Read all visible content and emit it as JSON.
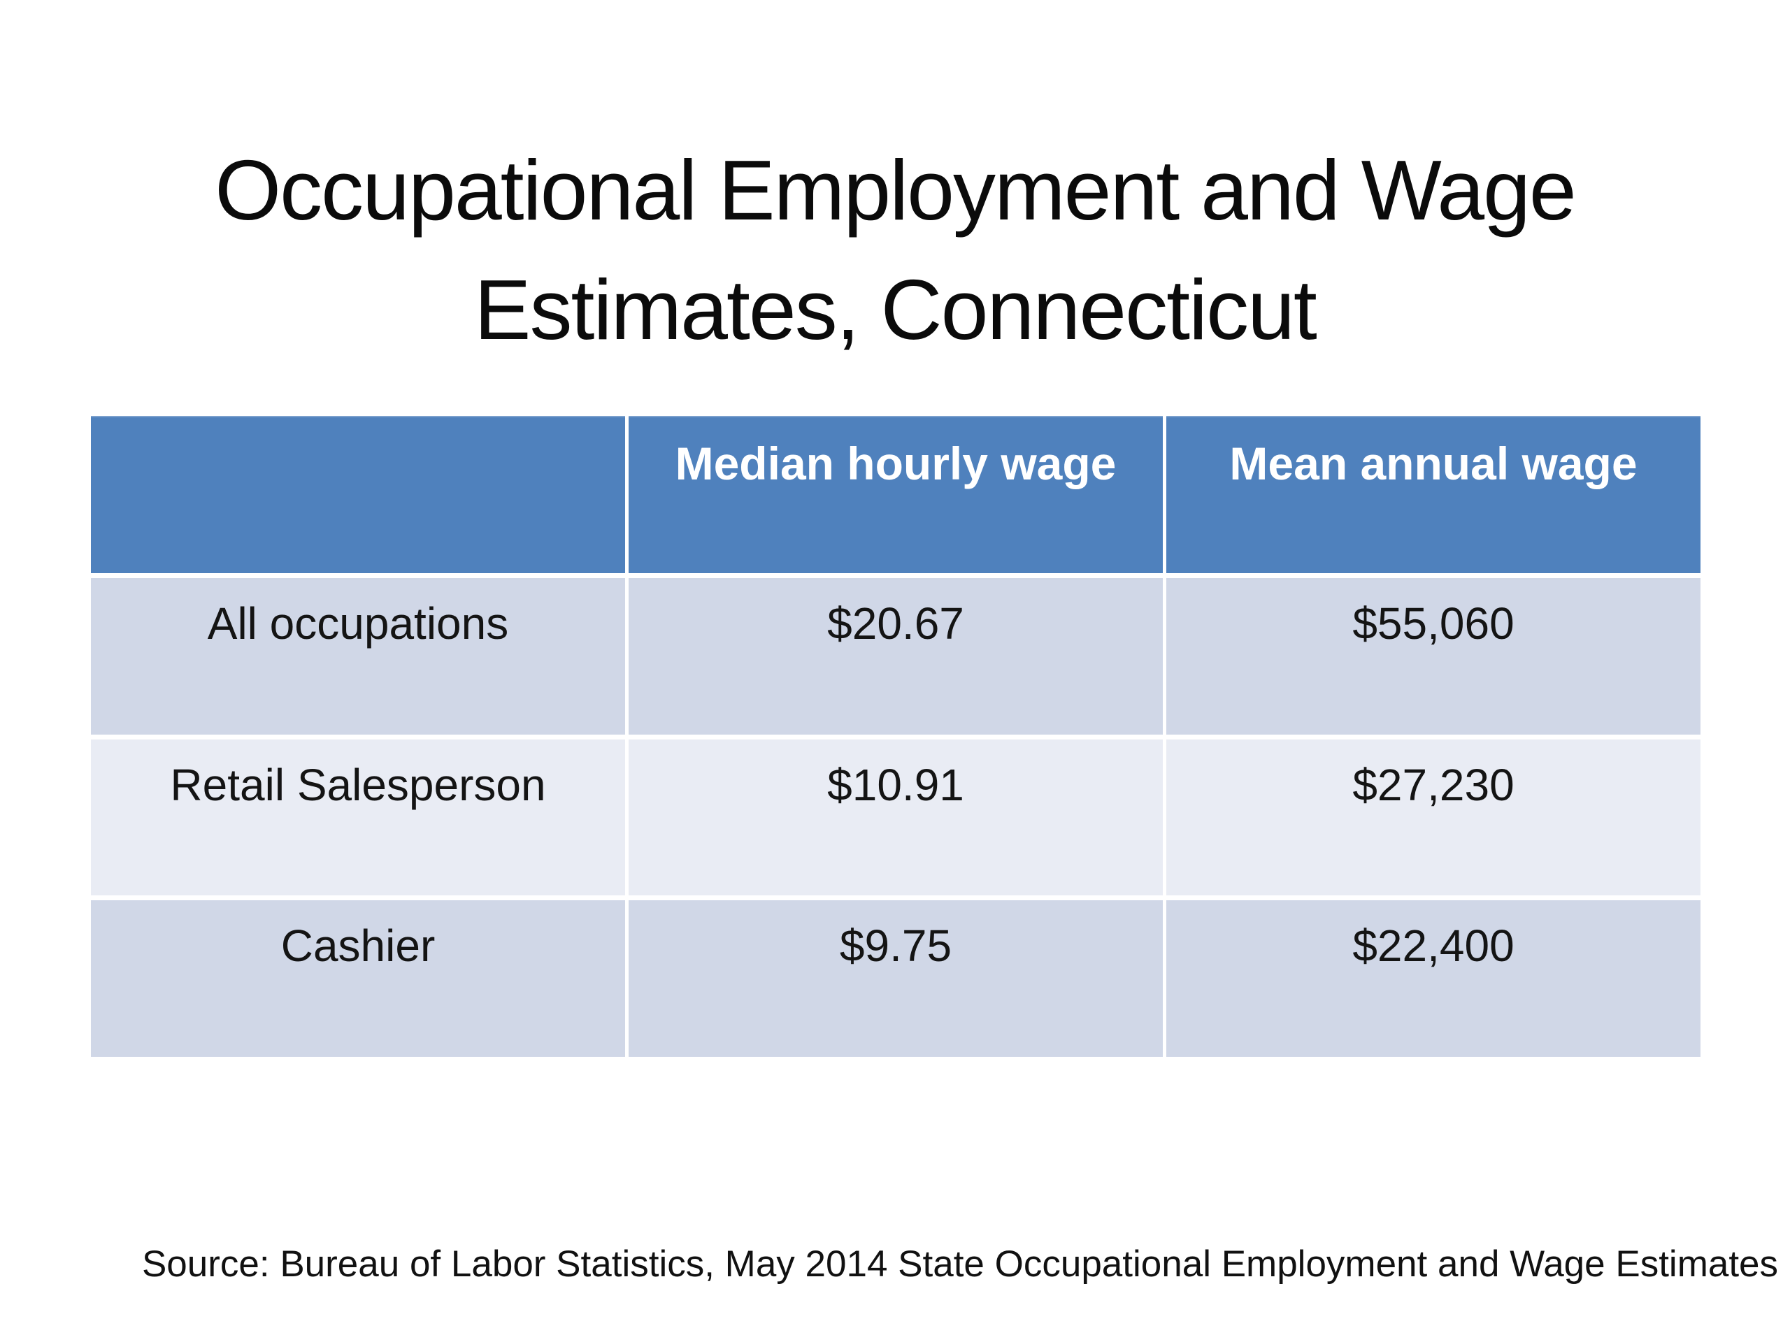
{
  "slide": {
    "title_line1": "Occupational Employment and Wage",
    "title_line2": "Estimates, Connecticut",
    "source": "Source: Bureau of Labor Statistics, May 2014 State Occupational Employment and Wage Estimates"
  },
  "table": {
    "headers": [
      "",
      "Median hourly wage",
      "Mean annual wage"
    ],
    "rows": [
      [
        "All occupations",
        "$20.67",
        "$55,060"
      ],
      [
        "Retail Salesperson",
        "$10.91",
        "$27,230"
      ],
      [
        "Cashier",
        "$9.75",
        "$22,400"
      ]
    ]
  },
  "colors": {
    "header_bg": "#4F81BD",
    "row_dark": "#D0D7E7",
    "row_light": "#E9ECF4",
    "header_text": "#FFFFFF",
    "body_text": "#141414",
    "background": "#FFFFFF"
  }
}
